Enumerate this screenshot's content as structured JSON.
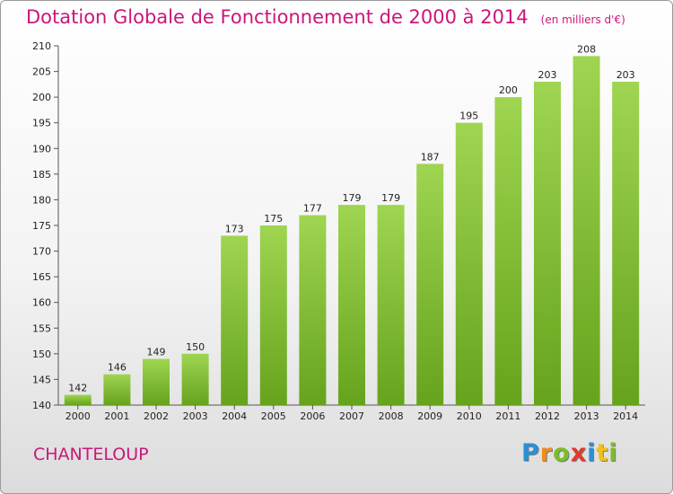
{
  "chart_data": {
    "type": "bar",
    "title": "Dotation Globale de Fonctionnement de 2000 à 2014",
    "subtitle": "(en milliers d'€)",
    "categories": [
      "2000",
      "2001",
      "2002",
      "2003",
      "2004",
      "2005",
      "2006",
      "2007",
      "2008",
      "2009",
      "2010",
      "2011",
      "2012",
      "2013",
      "2014"
    ],
    "values": [
      142,
      146,
      149,
      150,
      173,
      175,
      177,
      179,
      179,
      187,
      195,
      200,
      203,
      208,
      203
    ],
    "ylim": [
      140,
      210
    ],
    "yticks": [
      140,
      145,
      150,
      155,
      160,
      165,
      170,
      175,
      180,
      185,
      190,
      195,
      200,
      205,
      210
    ],
    "grid": false,
    "bar_color": "#7cbd2a",
    "bar_color_light": "#9fd551",
    "bar_color_dark": "#66a31c"
  },
  "footer": {
    "town": "CHANTELOUP",
    "logo_letters": [
      {
        "ch": "P",
        "color": "#2a8fd6"
      },
      {
        "ch": "r",
        "color": "#f28c1b"
      },
      {
        "ch": "o",
        "color": "#7cbd2a"
      },
      {
        "ch": "x",
        "color": "#e03a2f"
      },
      {
        "ch": "i",
        "color": "#2a8fd6"
      },
      {
        "ch": "t",
        "color": "#f2c21b"
      },
      {
        "ch": "i",
        "color": "#7cbd2a"
      }
    ]
  },
  "colors": {
    "accent": "#c9177a"
  }
}
